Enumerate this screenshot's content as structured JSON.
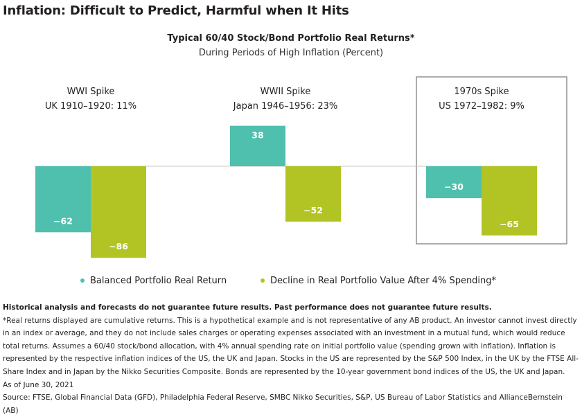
{
  "page_title": "Inflation: Difficult to Predict, Harmful when It Hits",
  "chart_data": {
    "type": "bar",
    "title": "Typical 60/40 Stock/Bond Portfolio Real Returns*",
    "subtitle": "During Periods of High Inflation (Percent)",
    "groups": [
      {
        "title": "WWI Spike",
        "subtitle": "UK 1910–1920: 11%",
        "highlighted": false
      },
      {
        "title": "WWII Spike",
        "subtitle": "Japan 1946–1956: 23%",
        "highlighted": false
      },
      {
        "title": "1970s Spike",
        "subtitle": "US 1972–1982: 9%",
        "highlighted": true
      }
    ],
    "series": [
      {
        "name": "Balanced Portfolio Real Return",
        "color": "#4fbfae",
        "values": [
          -62,
          38,
          -30
        ]
      },
      {
        "name": "Decline in Real Portfolio Value After 4% Spending*",
        "color": "#b1c424",
        "values": [
          -86,
          -52,
          -65
        ]
      }
    ],
    "data_label_format": "−",
    "grid": false,
    "legend_position": "bottom"
  },
  "notes": {
    "disclaimer": "Historical analysis and forecasts do not guarantee future results. Past performance does not guarantee future results.",
    "footnote": "*Real returns displayed are cumulative returns. This is a hypothetical example and is not representative of any AB product. An investor cannot invest directly in an index or average, and they do not include sales charges or operating expenses associated with an investment in a mutual fund, which would reduce total returns. Assumes a 60/40 stock/bond allocation, with 4% annual spending rate on initial portfolio value (spending grown with inflation). Inflation is represented by the respective inflation indices of the US, the UK and Japan. Stocks in the US are represented by the S&P 500 Index, in the UK by the FTSE All-Share Index and in Japan by the Nikko Securities Composite. Bonds are represented by the 10-year government bond indices of the US, the UK and Japan.",
    "as_of": "As of June 30, 2021",
    "source": "Source: FTSE, Global Financial Data (GFD), Philadelphia Federal Reserve, SMBC Nikko Securities, S&P, US Bureau of Labor Statistics and AllianceBernstein (AB)"
  }
}
